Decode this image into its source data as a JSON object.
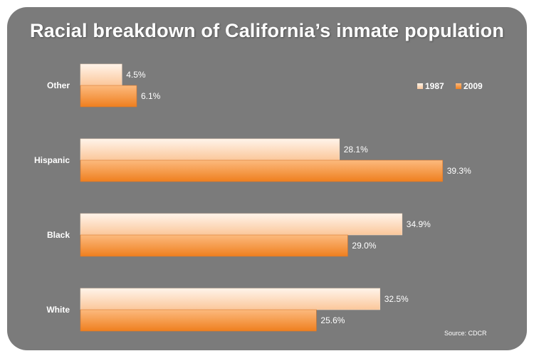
{
  "chart_data": {
    "type": "bar",
    "orientation": "horizontal",
    "title": "Racial breakdown of California’s inmate population",
    "categories": [
      "Other",
      "Hispanic",
      "Black",
      "White"
    ],
    "series": [
      {
        "name": "1987",
        "values": [
          4.5,
          28.1,
          34.9,
          32.5
        ],
        "labels": [
          "4.5%",
          "28.1%",
          "34.9%",
          "32.5%"
        ],
        "color_light": "#fff4ea",
        "color_dark": "#fbc79a"
      },
      {
        "name": "2009",
        "values": [
          6.1,
          39.3,
          29.0,
          25.6
        ],
        "labels": [
          "6.1%",
          "39.3%",
          "29.0%",
          "25.6%"
        ],
        "color_light": "#fcba7e",
        "color_dark": "#ef7f1f"
      }
    ],
    "legend": "top-right",
    "grid": false,
    "source": "Source: CDCR"
  },
  "colors": {
    "panel": "#7b7b7b",
    "text": "#ffffff"
  }
}
